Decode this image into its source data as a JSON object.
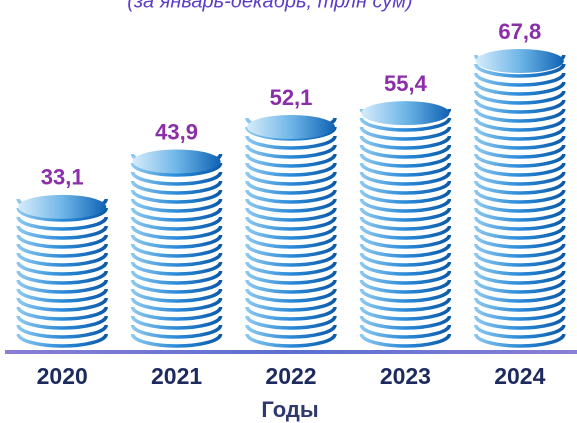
{
  "chart_data": {
    "type": "bar",
    "subtitle": "(за январь-декабрь, трлн сум)",
    "x_label": "Годы",
    "categories": [
      "2020",
      "2021",
      "2022",
      "2023",
      "2024"
    ],
    "values": [
      33.1,
      43.9,
      52.1,
      55.4,
      67.8
    ],
    "value_labels": [
      "33,1",
      "43,9",
      "52,1",
      "55,4",
      "67,8"
    ],
    "color": "#1f78c8"
  }
}
